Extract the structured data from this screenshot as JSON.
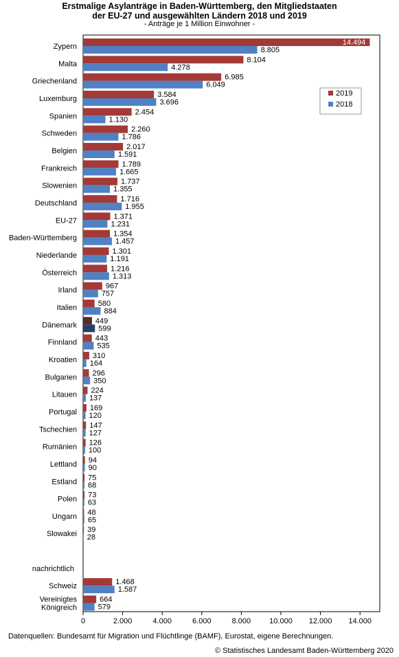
{
  "chart_data": {
    "type": "bar",
    "orientation": "horizontal",
    "title_line1": "Erstmalige Asylanträge in Baden-Württemberg, den Mitgliedstaaten",
    "title_line2": "der EU-27 und ausgewählten Ländern 2018 und 2019",
    "subtitle": "- Anträge je 1 Million Einwohner -",
    "categories": [
      "Zypern",
      "Malta",
      "Griechenland",
      "Luxemburg",
      "Spanien",
      "Schweden",
      "Belgien",
      "Frankreich",
      "Slowenien",
      "Deutschland",
      "EU-27",
      "Baden-Württemberg",
      "Niederlande",
      "Österreich",
      "Irland",
      "Italien",
      "Dänemark",
      "Finnland",
      "Kroatien",
      "Bulgarien",
      "Litauen",
      "Portugal",
      "Tschechien",
      "Rumänien",
      "Lettland",
      "Estland",
      "Polen",
      "Ungarn",
      "Slowakei"
    ],
    "section_label": "nachrichtlich",
    "extra_categories": [
      "Schweiz",
      "Vereinigtes Königreich"
    ],
    "extra_category_lines": [
      [
        "Schweiz"
      ],
      [
        "Vereinigtes",
        "Königreich"
      ]
    ],
    "series": [
      {
        "name": "2019",
        "color": "#a33a38",
        "values": [
          14494,
          8104,
          6985,
          3584,
          2454,
          2260,
          2017,
          1789,
          1737,
          1716,
          1371,
          1354,
          1301,
          1216,
          967,
          580,
          449,
          443,
          310,
          296,
          224,
          169,
          147,
          126,
          94,
          75,
          73,
          48,
          39
        ],
        "labels": [
          "14.494",
          "8.104",
          "6.985",
          "3.584",
          "2.454",
          "2.260",
          "2.017",
          "1.789",
          "1.737",
          "1.716",
          "1.371",
          "1.354",
          "1.301",
          "1.216",
          "967",
          "580",
          "449",
          "443",
          "310",
          "296",
          "224",
          "169",
          "147",
          "126",
          "94",
          "75",
          "73",
          "48",
          "39"
        ],
        "extra_values": [
          1468,
          664
        ],
        "extra_labels": [
          "1.468",
          "664"
        ]
      },
      {
        "name": "2018",
        "color": "#4f81c4",
        "values": [
          8805,
          4278,
          6049,
          3696,
          1130,
          1786,
          1591,
          1665,
          1355,
          1955,
          1231,
          1457,
          1191,
          1313,
          757,
          884,
          599,
          535,
          164,
          350,
          137,
          120,
          127,
          100,
          90,
          68,
          63,
          65,
          28
        ],
        "labels": [
          "8.805",
          "4.278",
          "6.049",
          "3.696",
          "1.130",
          "1.786",
          "1.591",
          "1.665",
          "1.355",
          "1.955",
          "1.231",
          "1.457",
          "1.191",
          "1.313",
          "757",
          "884",
          "599",
          "535",
          "164",
          "350",
          "137",
          "120",
          "127",
          "100",
          "90",
          "68",
          "63",
          "65",
          "28"
        ],
        "extra_values": [
          1587,
          579
        ],
        "extra_labels": [
          "1.587",
          "579"
        ]
      }
    ],
    "highlight_category": "Dänemark",
    "highlight_colors": {
      "2019": "#5a2a28",
      "2018": "#283f66"
    },
    "x_ticks": [
      0,
      2000,
      4000,
      6000,
      8000,
      10000,
      12000,
      14000
    ],
    "x_tick_labels": [
      "0",
      "2.000",
      "4.000",
      "6.000",
      "8.000",
      "10.000",
      "12.000",
      "14.000"
    ],
    "xlim": [
      0,
      15000
    ],
    "legend_position": "top-right"
  },
  "footer": {
    "source": "Datenquellen: Bundesamt für Migration und Flüchtlinge (BAMF), Eurostat, eigene Berechnungen.",
    "copyright": "© Statistisches Landesamt Baden-Württemberg 2020"
  }
}
